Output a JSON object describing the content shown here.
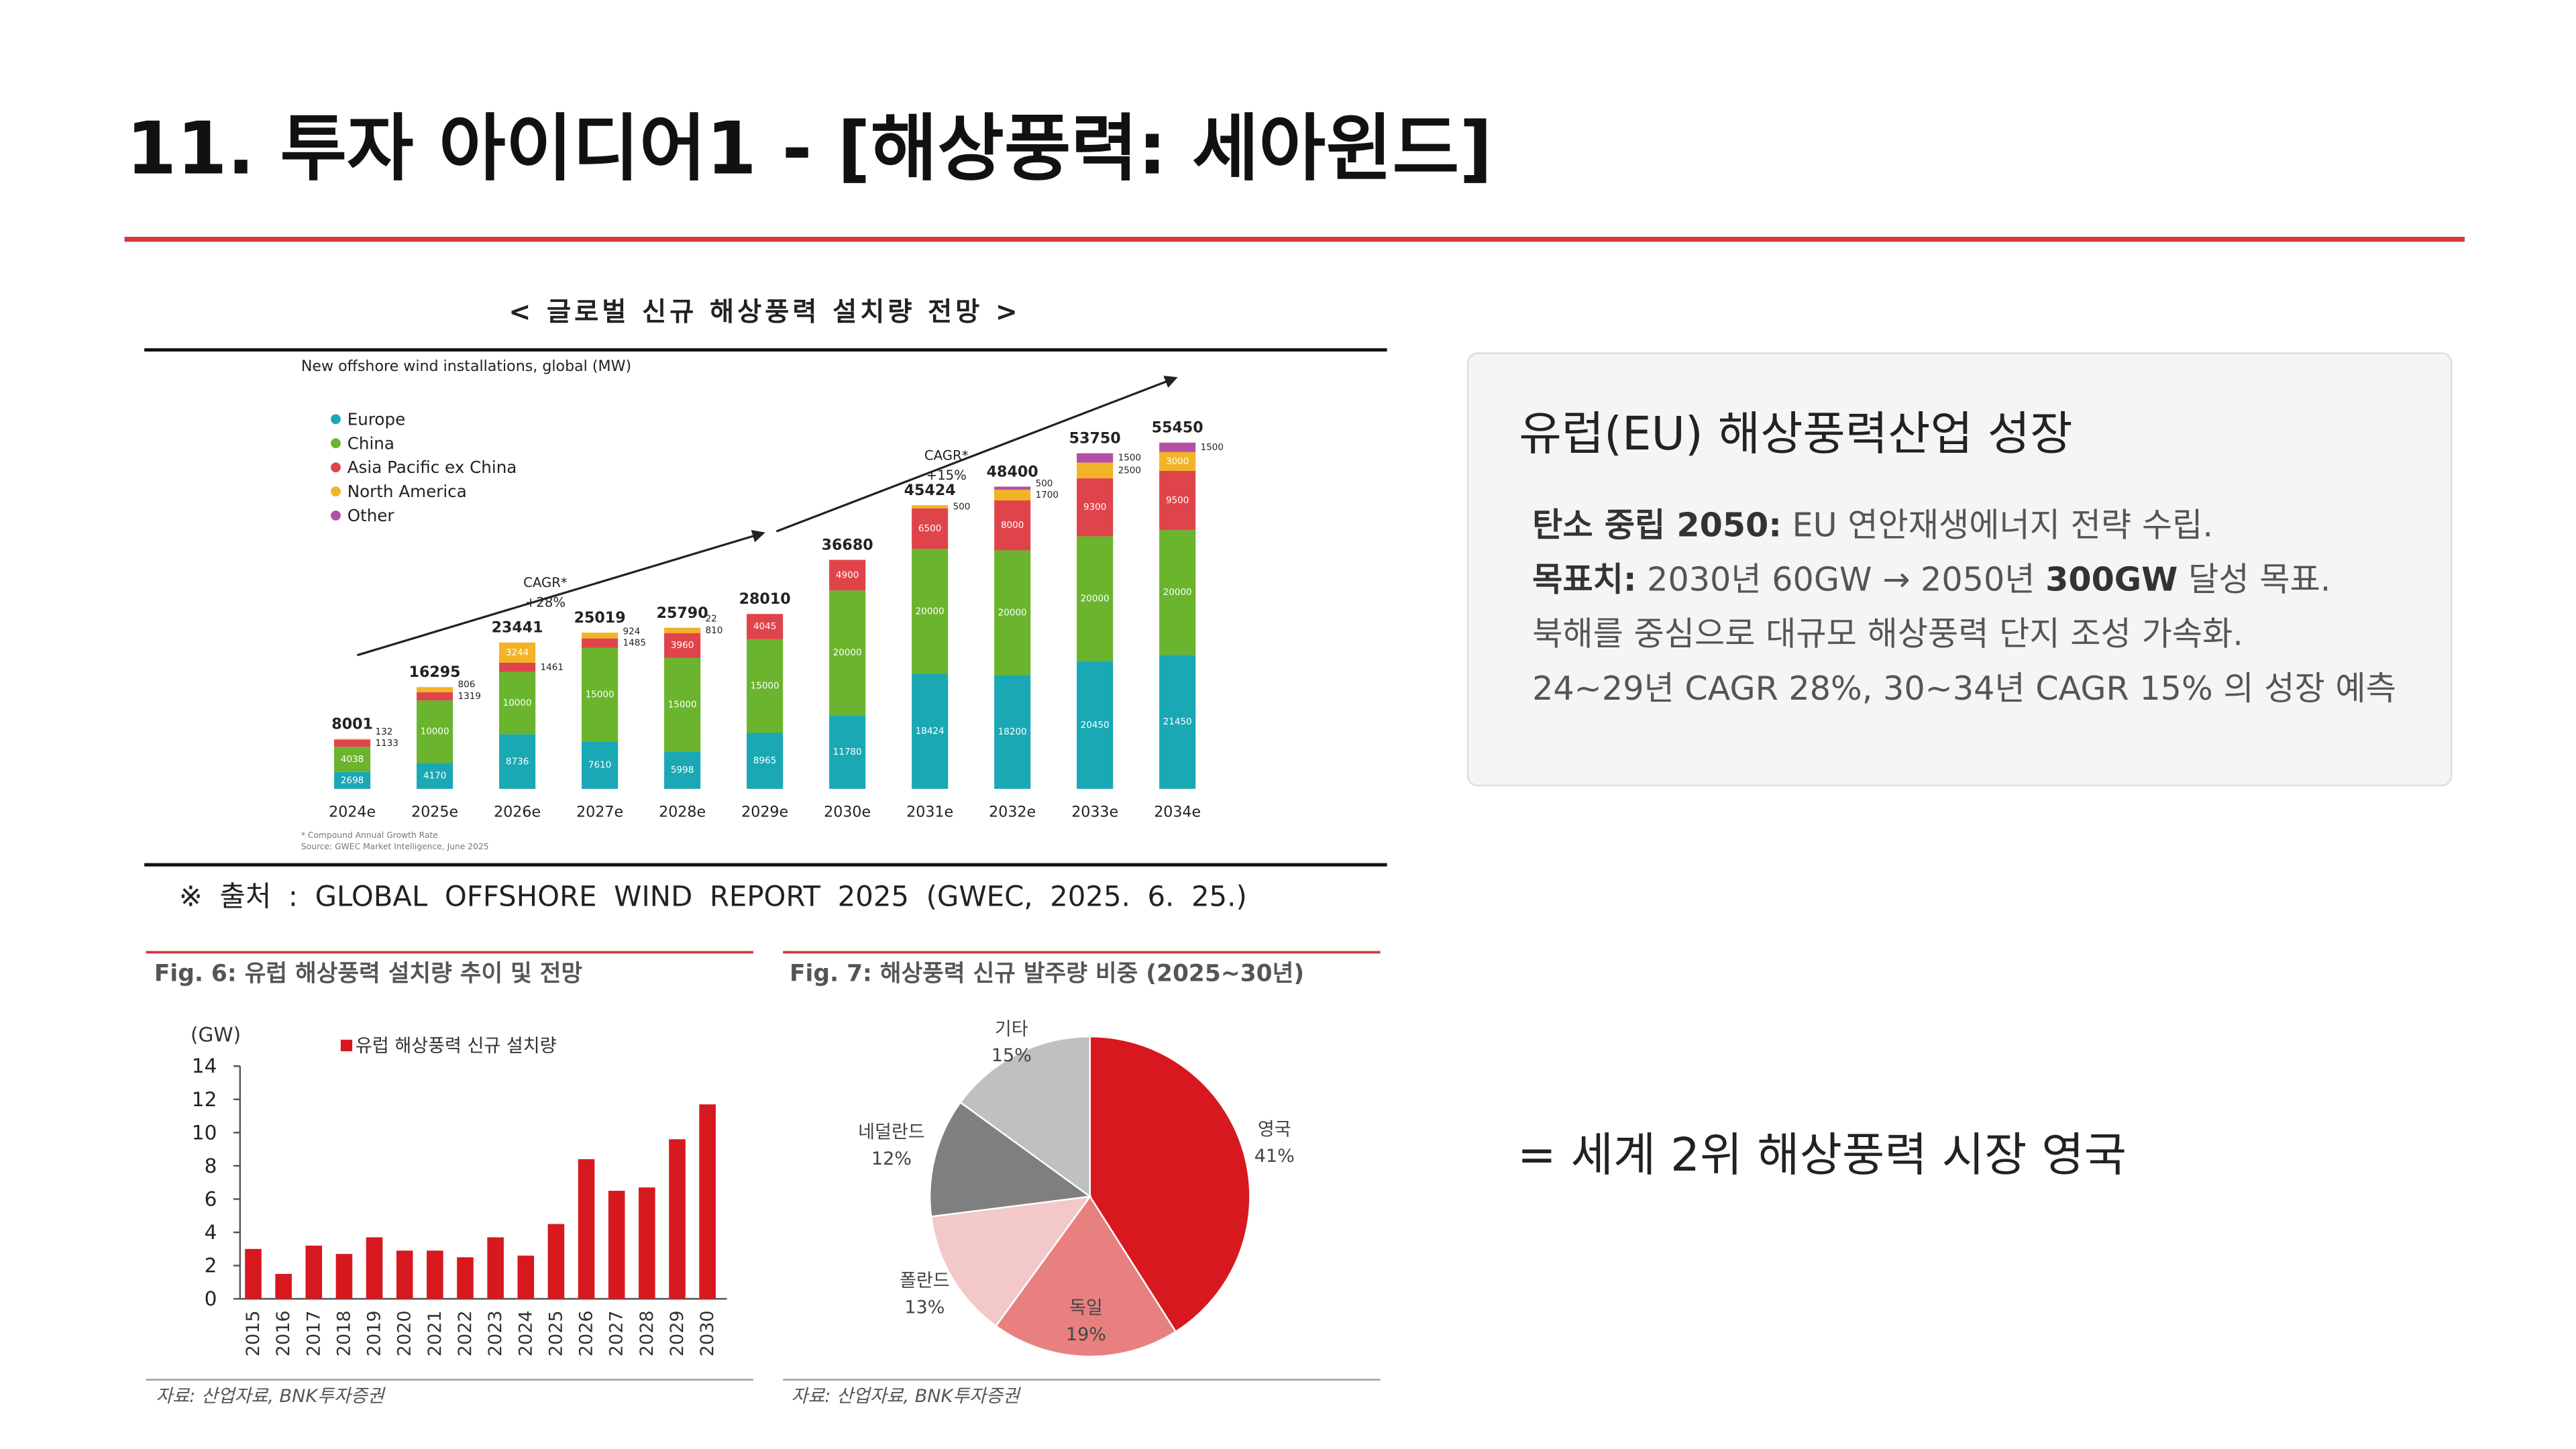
{
  "header": {
    "title": "11. 투자 아이디어1 - [해상풍력: 세아윈드]"
  },
  "chart_data": [
    {
      "type": "stacked-bar",
      "title": "< 글로벌 신규 해상풍력 설치량 전망 >",
      "subtitle": "New offshore wind installations, global (MW)",
      "categories": [
        "2024e",
        "2025e",
        "2026e",
        "2027e",
        "2028e",
        "2029e",
        "2030e",
        "2031e",
        "2032e",
        "2033e",
        "2034e"
      ],
      "series": [
        {
          "name": "Europe",
          "color": "#1aa8b4",
          "values": [
            2698,
            4170,
            8736,
            7610,
            5998,
            8965,
            11780,
            18424,
            18200,
            20450,
            21450
          ]
        },
        {
          "name": "China",
          "color": "#6ab42e",
          "values": [
            4038,
            10000,
            10000,
            15000,
            15000,
            15000,
            20000,
            20000,
            20000,
            20000,
            20000
          ]
        },
        {
          "name": "Asia Pacific ex China",
          "color": "#e0444b",
          "values": [
            1133,
            1319,
            1461,
            1485,
            3960,
            4045,
            4900,
            6500,
            8000,
            9300,
            9500
          ]
        },
        {
          "name": "North America",
          "color": "#f2b326",
          "values": [
            132,
            806,
            3244,
            924,
            810,
            0,
            0,
            500,
            1700,
            2500,
            3000
          ]
        },
        {
          "name": "Other",
          "color": "#b44fa3",
          "values": [
            0,
            0,
            0,
            0,
            22,
            0,
            0,
            0,
            500,
            1500,
            1500
          ]
        }
      ],
      "totals": [
        8001,
        16295,
        23441,
        25019,
        25790,
        28010,
        36680,
        45424,
        48400,
        53750,
        55450
      ],
      "ylim": [
        0,
        60000
      ],
      "annotations": [
        [
          "CAGR*",
          "+28%"
        ],
        [
          "CAGR*",
          "+15%"
        ]
      ],
      "footnotes": [
        "* Compound Annual Growth Rate",
        "Source: GWEC Market Intelligence, June 2025"
      ],
      "source": "※ 출처 : GLOBAL OFFSHORE WIND REPORT 2025 (GWEC, 2025. 6. 25.)"
    },
    {
      "type": "bar",
      "title": "Fig. 6: 유럽 해상풍력 설치량 추이 및 전망",
      "y_label": "(GW)",
      "categories": [
        "2015",
        "2016",
        "2017",
        "2018",
        "2019",
        "2020",
        "2021",
        "2022",
        "2023",
        "2024",
        "2025",
        "2026",
        "2027",
        "2028",
        "2029",
        "2030"
      ],
      "series": [
        {
          "name": "유럽 해상풍력 신규 설치량",
          "color": "#d7191f",
          "values": [
            3.0,
            1.5,
            3.2,
            2.7,
            3.7,
            2.9,
            2.9,
            2.5,
            3.7,
            2.6,
            4.5,
            8.4,
            6.5,
            6.7,
            9.6,
            11.7
          ]
        }
      ],
      "ylim": [
        0,
        14
      ],
      "yticks": [
        0,
        2,
        4,
        6,
        8,
        10,
        12,
        14
      ],
      "source": "자료: 산업자료, BNK투자증권"
    },
    {
      "type": "pie",
      "title": "Fig. 7: 해상풍력 신규 발주량 비중 (2025~30년)",
      "categories": [
        "영국",
        "독일",
        "폴란드",
        "네덜란드",
        "기타"
      ],
      "values": [
        41,
        19,
        13,
        12,
        15
      ],
      "value_labels": [
        "41%",
        "19%",
        "13%",
        "12%",
        "15%"
      ],
      "colors": [
        "#d7191f",
        "#e88080",
        "#f2c8c8",
        "#7f7f7f",
        "#c0c0c0"
      ],
      "source": "자료: 산업자료, BNK투자증권"
    }
  ],
  "panel": {
    "title": "유럽(EU) 해상풍력산업 성장",
    "lines": [
      [
        "탄소 중립 2050:",
        " EU 연안재생에너지 전략 수립."
      ],
      [
        "목표치:",
        " 2030년 60GW → 2050년 ",
        "300GW",
        " 달성 목표."
      ],
      [
        "북해를 중심으로 대규모 해상풍력 단지 조성 가속화."
      ],
      [
        "24~29년 CAGR 28%, 30~34년 CAGR 15% 의 성장 예측"
      ]
    ]
  },
  "note": "= 세계 2위 해상풍력 시장 영국"
}
